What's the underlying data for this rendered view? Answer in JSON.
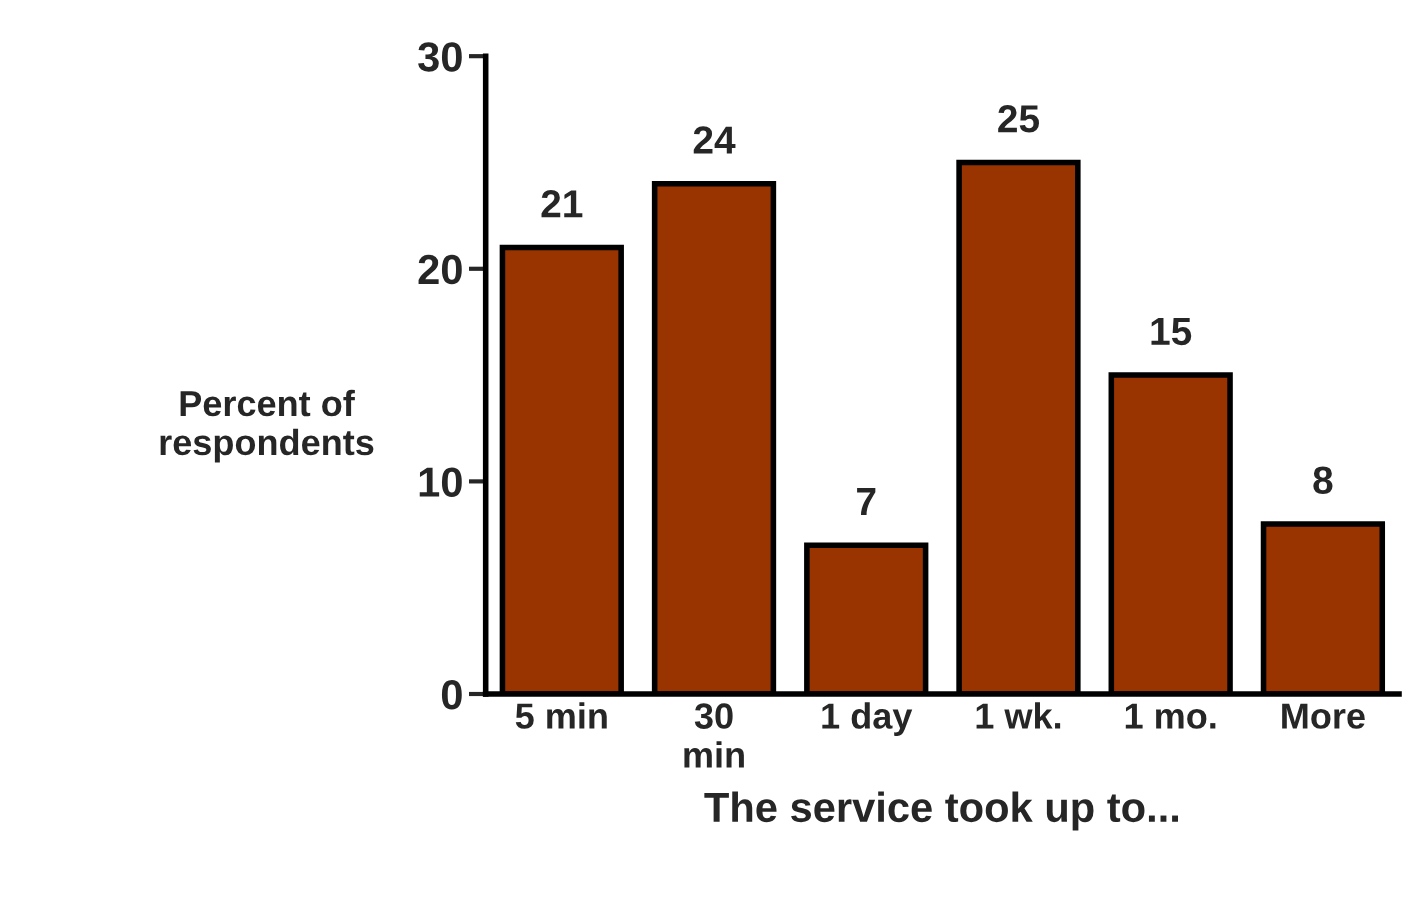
{
  "chart_data": {
    "type": "bar",
    "categories": [
      "5 min",
      "30\nmin",
      "1 day",
      "1 wk.",
      "1 mo.",
      "More"
    ],
    "values": [
      21,
      24,
      7,
      25,
      15,
      8
    ],
    "color": "#993300",
    "xlabel": "The service took up to...",
    "ylabel": "Percent of\nrespondents",
    "ylim": [
      0,
      30
    ],
    "yticks": [
      0,
      10,
      20,
      30
    ],
    "data_labels": true
  }
}
